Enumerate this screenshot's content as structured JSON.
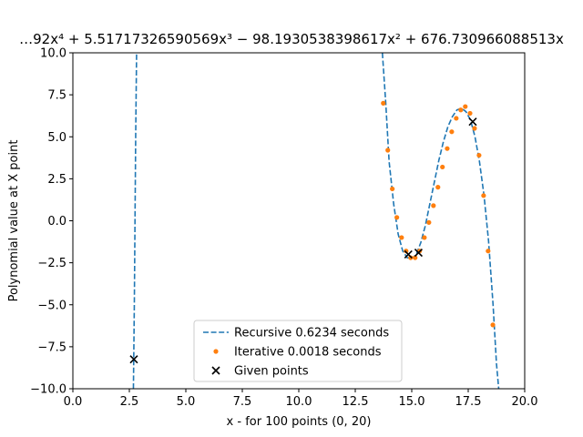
{
  "chart_data": {
    "type": "line",
    "title": "…92x⁴ + 5.51717326590569x³ − 98.1930538398617x² + 676.730966088513x",
    "xlabel": "x - for 100 points (0, 20)",
    "ylabel": "Polynomial value at X point",
    "xlim": [
      0,
      20
    ],
    "ylim": [
      -10,
      10
    ],
    "x_ticks": [
      0,
      2.5,
      5,
      7.5,
      10,
      12.5,
      15,
      17.5,
      20
    ],
    "x_tick_labels": [
      "0.0",
      "2.5",
      "5.0",
      "7.5",
      "10.0",
      "12.5",
      "15.0",
      "17.5",
      "20.0"
    ],
    "y_ticks": [
      -10,
      -7.5,
      -5,
      -2.5,
      0,
      2.5,
      5,
      7.5,
      10
    ],
    "y_tick_labels": [
      "−10.0",
      "−7.5",
      "−5.0",
      "−2.5",
      "0.0",
      "2.5",
      "5.0",
      "7.5",
      "10.0"
    ],
    "grid": false,
    "legend_position": "lower-center",
    "series": [
      {
        "name": "Recursive 0.6234 seconds",
        "style": "dashed-line",
        "color": "#1f77b4",
        "segments": [
          [
            [
              2.68,
              -10
            ],
            [
              2.72,
              -5
            ],
            [
              2.75,
              0
            ],
            [
              2.78,
              5
            ],
            [
              2.82,
              10
            ]
          ],
          [
            [
              13.7,
              10
            ],
            [
              13.85,
              7.0
            ],
            [
              14.0,
              3.5
            ],
            [
              14.2,
              1.0
            ],
            [
              14.4,
              -0.8
            ],
            [
              14.6,
              -1.8
            ],
            [
              14.8,
              -2.2
            ],
            [
              15.0,
              -2.25
            ],
            [
              15.2,
              -2.0
            ],
            [
              15.4,
              -1.3
            ],
            [
              15.6,
              -0.3
            ],
            [
              15.8,
              1.0
            ],
            [
              16.0,
              2.3
            ],
            [
              16.2,
              3.6
            ],
            [
              16.4,
              4.7
            ],
            [
              16.6,
              5.6
            ],
            [
              16.8,
              6.2
            ],
            [
              17.0,
              6.6
            ],
            [
              17.2,
              6.7
            ],
            [
              17.4,
              6.5
            ],
            [
              17.6,
              6.0
            ],
            [
              17.8,
              5.0
            ],
            [
              18.0,
              3.5
            ],
            [
              18.2,
              1.5
            ],
            [
              18.4,
              -1.2
            ],
            [
              18.6,
              -5.0
            ],
            [
              18.75,
              -8.5
            ],
            [
              18.85,
              -10
            ]
          ]
        ]
      },
      {
        "name": "Iterative 0.0018 seconds",
        "style": "dots",
        "color": "#ff7f0e",
        "points": [
          [
            13.74,
            7.0
          ],
          [
            13.94,
            4.2
          ],
          [
            14.14,
            1.9
          ],
          [
            14.34,
            0.2
          ],
          [
            14.55,
            -1.0
          ],
          [
            14.75,
            -1.8
          ],
          [
            14.95,
            -2.2
          ],
          [
            15.15,
            -2.2
          ],
          [
            15.35,
            -1.8
          ],
          [
            15.56,
            -1.0
          ],
          [
            15.76,
            -0.1
          ],
          [
            15.96,
            0.9
          ],
          [
            16.16,
            2.0
          ],
          [
            16.36,
            3.2
          ],
          [
            16.57,
            4.3
          ],
          [
            16.77,
            5.3
          ],
          [
            16.97,
            6.1
          ],
          [
            17.17,
            6.6
          ],
          [
            17.37,
            6.8
          ],
          [
            17.58,
            6.4
          ],
          [
            17.78,
            5.5
          ],
          [
            17.98,
            3.9
          ],
          [
            18.18,
            1.5
          ],
          [
            18.38,
            -1.8
          ],
          [
            18.59,
            -6.2
          ]
        ]
      },
      {
        "name": "Given points",
        "style": "x-markers",
        "color": "#000000",
        "points": [
          [
            2.7,
            -8.25
          ],
          [
            14.85,
            -2.0
          ],
          [
            15.3,
            -1.9
          ],
          [
            17.7,
            5.9
          ]
        ]
      }
    ]
  }
}
